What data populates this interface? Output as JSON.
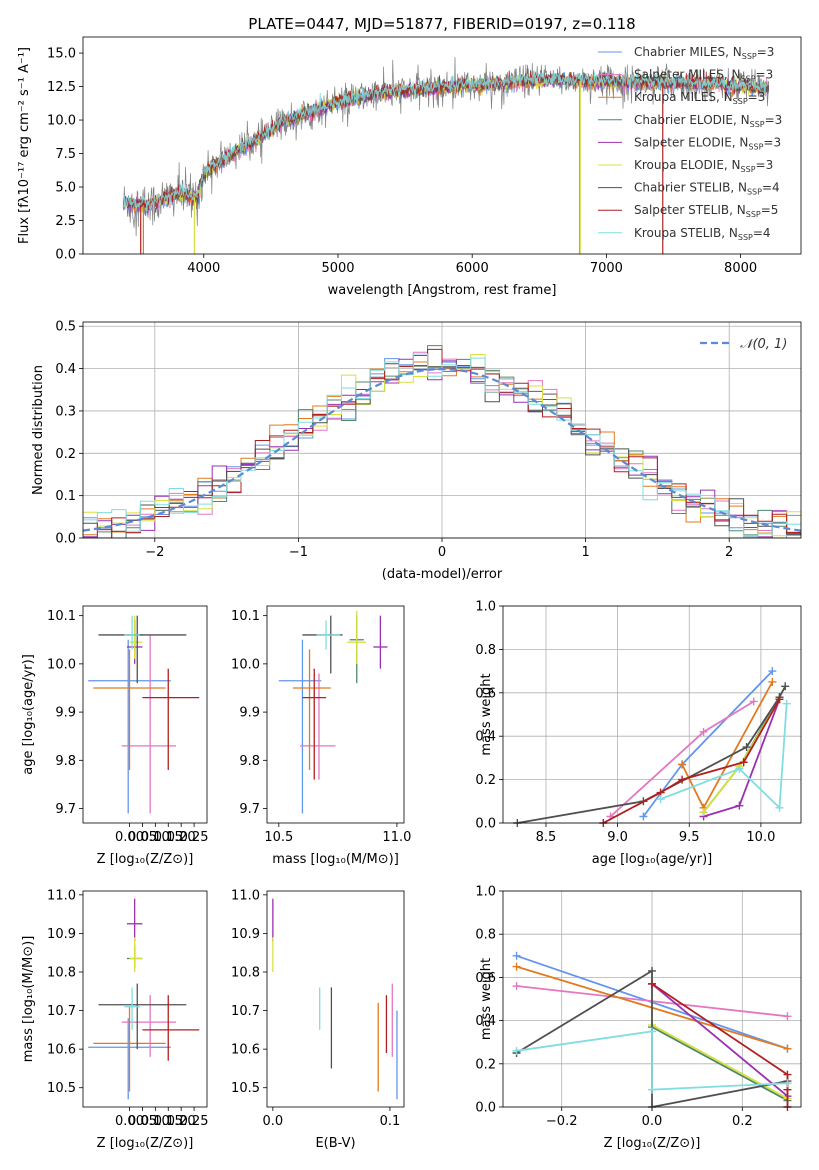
{
  "colors": {
    "Chabrier MILES": "#6495ed",
    "Salpeter MILES": "#e377c2",
    "Kroupa MILES": "#e07b20",
    "Chabrier ELODIE": "#4f8a6a",
    "Salpeter ELODIE": "#9b30b0",
    "Kroupa ELODIE": "#d8e040",
    "Chabrier STELIB": "#505050",
    "Salpeter STELIB": "#b02020",
    "Kroupa STELIB": "#80dde0"
  },
  "chart_data": [
    {
      "type": "line",
      "title": "PLATE=0447, MJD=51877, FIBERID=0197, z=0.118",
      "xlabel": "wavelength [Angstrom, rest frame]",
      "ylabel": "Flux [fλ10⁻¹⁷ erg cm⁻² s⁻¹ A⁻¹]",
      "xlim": [
        3100,
        8450
      ],
      "ylim": [
        0,
        16.2
      ],
      "xticks": [
        "4000",
        "5000",
        "6000",
        "7000",
        "8000"
      ],
      "yticks": [
        "0.0",
        "2.5",
        "5.0",
        "7.5",
        "10.0",
        "12.5",
        "15.0"
      ],
      "legend": "top-right",
      "series": [
        {
          "label": "Chabrier MILES, N",
          "sub": "SSP",
          "eq": "=3"
        },
        {
          "label": "Salpeter MILES, N",
          "sub": "SSP",
          "eq": "=3"
        },
        {
          "label": "Kroupa MILES, N",
          "sub": "SSP",
          "eq": "=3"
        },
        {
          "label": "Chabrier ELODIE, N",
          "sub": "SSP",
          "eq": "=3"
        },
        {
          "label": "Salpeter ELODIE, N",
          "sub": "SSP",
          "eq": "=3"
        },
        {
          "label": "Kroupa ELODIE, N",
          "sub": "SSP",
          "eq": "=3"
        },
        {
          "label": "Chabrier STELIB, N",
          "sub": "SSP",
          "eq": "=4"
        },
        {
          "label": "Salpeter STELIB, N",
          "sub": "SSP",
          "eq": "=5"
        },
        {
          "label": "Kroupa STELIB, N",
          "sub": "SSP",
          "eq": "=4"
        }
      ],
      "continuum": [
        [
          3400,
          3.8
        ],
        [
          3600,
          3.6
        ],
        [
          3800,
          4.5
        ],
        [
          3950,
          4.2
        ],
        [
          4000,
          6.0
        ],
        [
          4200,
          7.4
        ],
        [
          4400,
          8.6
        ],
        [
          4600,
          9.9
        ],
        [
          4800,
          10.6
        ],
        [
          5000,
          11.3
        ],
        [
          5200,
          11.8
        ],
        [
          5400,
          12.1
        ],
        [
          5600,
          12.3
        ],
        [
          5800,
          12.5
        ],
        [
          6000,
          12.6
        ],
        [
          6200,
          12.7
        ],
        [
          6400,
          12.9
        ],
        [
          6600,
          13.0
        ],
        [
          6800,
          12.9
        ],
        [
          7000,
          12.9
        ],
        [
          7200,
          12.8
        ],
        [
          7500,
          12.8
        ],
        [
          7800,
          12.7
        ],
        [
          8000,
          12.5
        ],
        [
          8200,
          12.4
        ]
      ]
    },
    {
      "type": "histogram",
      "xlabel": "(data-model)/error",
      "ylabel": "Normed distribution",
      "xlim": [
        -2.5,
        2.5
      ],
      "ylim": [
        0,
        0.51
      ],
      "xticks": [
        "−2",
        "−1",
        "0",
        "1",
        "2"
      ],
      "yticks": [
        "0.0",
        "0.1",
        "0.2",
        "0.3",
        "0.4",
        "0.5"
      ],
      "legend": "𝒩(0, 1)",
      "legend_position": "top-right",
      "bin_width": 0.1,
      "reference": "normal(0,1)"
    },
    {
      "type": "errorbar",
      "xlabel": "Z [log₁₀(Z/Z⊙)]",
      "ylabel": "age  [log₁₀(age/yr)]",
      "xlim": [
        -0.18,
        0.3
      ],
      "ylim": [
        9.67,
        10.12
      ],
      "xticks": [
        "0.00",
        "0.05",
        "0.10",
        "0.15",
        "0.20",
        "0.25"
      ],
      "yticks": [
        "9.7",
        "9.8",
        "9.9",
        "10.0",
        "10.1"
      ],
      "points": [
        {
          "k": "Chabrier MILES",
          "x": -0.005,
          "y": 9.965,
          "xe": [
            -0.16,
            0.16
          ],
          "ye": [
            9.69,
            10.05
          ]
        },
        {
          "k": "Salpeter MILES",
          "x": 0.08,
          "y": 9.83,
          "xe": [
            -0.03,
            0.18
          ],
          "ye": [
            9.69,
            10.06
          ]
        },
        {
          "k": "Kroupa MILES",
          "x": 0.0,
          "y": 9.95,
          "xe": [
            -0.14,
            0.14
          ],
          "ye": [
            9.78,
            10.03
          ]
        },
        {
          "k": "Chabrier ELODIE",
          "x": 0.02,
          "y": 10.06,
          "xe": [
            -0.01,
            0.05
          ],
          "ye": [
            10.02,
            10.09
          ]
        },
        {
          "k": "Salpeter ELODIE",
          "x": 0.02,
          "y": 10.035,
          "xe": [
            -0.01,
            0.05
          ],
          "ye": [
            10.0,
            10.09
          ]
        },
        {
          "k": "Kroupa ELODIE",
          "x": 0.02,
          "y": 10.045,
          "xe": [
            0.0,
            0.05
          ],
          "ye": [
            10.01,
            10.1
          ]
        },
        {
          "k": "Chabrier STELIB",
          "x": 0.03,
          "y": 10.06,
          "xe": [
            -0.12,
            0.22
          ],
          "ye": [
            9.96,
            10.1
          ]
        },
        {
          "k": "Salpeter STELIB",
          "x": 0.15,
          "y": 9.93,
          "xe": [
            0.05,
            0.27
          ],
          "ye": [
            9.78,
            9.99
          ]
        },
        {
          "k": "Kroupa STELIB",
          "x": 0.01,
          "y": 10.06,
          "xe": [
            -0.02,
            0.04
          ],
          "ye": [
            10.03,
            10.1
          ]
        }
      ]
    },
    {
      "type": "errorbar",
      "xlabel": "mass [log₁₀(M/M⊙)]",
      "xlim": [
        10.45,
        11.03
      ],
      "ylim": [
        9.67,
        10.12
      ],
      "xticks": [
        "10.5",
        "11.0"
      ],
      "yticks": [
        "9.7",
        "9.8",
        "9.9",
        "10.0",
        "10.1"
      ],
      "points": [
        {
          "k": "Chabrier MILES",
          "x": 10.6,
          "y": 9.965,
          "xe": [
            10.5,
            10.68
          ],
          "ye": [
            9.69,
            10.05
          ]
        },
        {
          "k": "Salpeter MILES",
          "x": 10.67,
          "y": 9.83,
          "xe": [
            10.59,
            10.74
          ],
          "ye": [
            9.76,
            9.98
          ]
        },
        {
          "k": "Kroupa MILES",
          "x": 10.63,
          "y": 9.95,
          "xe": [
            10.56,
            10.72
          ],
          "ye": [
            9.78,
            10.03
          ]
        },
        {
          "k": "Chabrier ELODIE",
          "x": 10.83,
          "y": 10.05,
          "xe": [
            10.8,
            10.86
          ],
          "ye": [
            9.96,
            10.1
          ]
        },
        {
          "k": "Salpeter ELODIE",
          "x": 10.93,
          "y": 10.035,
          "xe": [
            10.9,
            10.96
          ],
          "ye": [
            9.99,
            10.1
          ]
        },
        {
          "k": "Kroupa ELODIE",
          "x": 10.83,
          "y": 10.045,
          "xe": [
            10.79,
            10.87
          ],
          "ye": [
            10.0,
            10.11
          ]
        },
        {
          "k": "Chabrier STELIB",
          "x": 10.72,
          "y": 10.06,
          "xe": [
            10.6,
            10.77
          ],
          "ye": [
            9.98,
            10.1
          ]
        },
        {
          "k": "Salpeter STELIB",
          "x": 10.65,
          "y": 9.93,
          "xe": [
            10.6,
            10.7
          ],
          "ye": [
            9.76,
            9.99
          ]
        },
        {
          "k": "Kroupa STELIB",
          "x": 10.7,
          "y": 10.06,
          "xe": [
            10.66,
            10.76
          ],
          "ye": [
            10.03,
            10.09
          ]
        }
      ]
    },
    {
      "type": "line",
      "xlabel": "age  [log₁₀(age/yr)]",
      "ylabel": "mass weight",
      "xlim": [
        8.2,
        10.28
      ],
      "ylim": [
        0,
        1.0
      ],
      "xticks": [
        "8.5",
        "9.0",
        "9.5",
        "10.0"
      ],
      "yticks": [
        "0.0",
        "0.2",
        "0.4",
        "0.6",
        "0.8",
        "1.0"
      ],
      "series": [
        {
          "k": "Chabrier MILES",
          "x": [
            9.18,
            9.45,
            10.08
          ],
          "y": [
            0.03,
            0.27,
            0.7
          ]
        },
        {
          "k": "Salpeter MILES",
          "x": [
            8.95,
            9.6,
            9.95
          ],
          "y": [
            0.03,
            0.42,
            0.56
          ]
        },
        {
          "k": "Kroupa MILES",
          "x": [
            9.45,
            9.6,
            10.08
          ],
          "y": [
            0.27,
            0.07,
            0.65
          ]
        },
        {
          "k": "Chabrier ELODIE",
          "x": [
            9.6,
            9.85,
            10.13
          ],
          "y": [
            0.05,
            0.26,
            0.58
          ]
        },
        {
          "k": "Salpeter ELODIE",
          "x": [
            9.6,
            9.85,
            10.13
          ],
          "y": [
            0.03,
            0.08,
            0.57
          ]
        },
        {
          "k": "Kroupa ELODIE",
          "x": [
            9.6,
            9.85,
            10.13
          ],
          "y": [
            0.05,
            0.26,
            0.57
          ]
        },
        {
          "k": "Chabrier STELIB",
          "x": [
            8.3,
            9.18,
            9.9,
            10.13,
            10.17
          ],
          "y": [
            0.0,
            0.1,
            0.35,
            0.58,
            0.63
          ]
        },
        {
          "k": "Salpeter STELIB",
          "x": [
            8.9,
            9.3,
            9.45,
            9.88,
            10.13
          ],
          "y": [
            0.0,
            0.14,
            0.2,
            0.28,
            0.57
          ]
        },
        {
          "k": "Kroupa STELIB",
          "x": [
            9.3,
            9.85,
            10.13,
            10.18
          ],
          "y": [
            0.11,
            0.25,
            0.07,
            0.55
          ]
        }
      ]
    },
    {
      "type": "errorbar",
      "xlabel": "Z [log₁₀(Z/Z⊙)]",
      "ylabel": "mass [log₁₀(M/M⊙)]",
      "xlim": [
        -0.18,
        0.3
      ],
      "ylim": [
        10.45,
        11.01
      ],
      "xticks": [
        "0.00",
        "0.05",
        "0.10",
        "0.15",
        "0.20",
        "0.25"
      ],
      "yticks": [
        "10.5",
        "10.6",
        "10.7",
        "10.8",
        "10.9",
        "11.0"
      ],
      "points": [
        {
          "k": "Chabrier MILES",
          "x": -0.005,
          "y": 10.605,
          "xe": [
            -0.16,
            0.16
          ],
          "ye": [
            10.47,
            10.68
          ]
        },
        {
          "k": "Salpeter MILES",
          "x": 0.08,
          "y": 10.67,
          "xe": [
            -0.03,
            0.18
          ],
          "ye": [
            10.58,
            10.74
          ]
        },
        {
          "k": "Kroupa MILES",
          "x": 0.0,
          "y": 10.615,
          "xe": [
            -0.14,
            0.14
          ],
          "ye": [
            10.49,
            10.71
          ]
        },
        {
          "k": "Chabrier ELODIE",
          "x": 0.02,
          "y": 10.835,
          "xe": [
            -0.01,
            0.05
          ],
          "ye": [
            10.81,
            10.87
          ]
        },
        {
          "k": "Salpeter ELODIE",
          "x": 0.02,
          "y": 10.925,
          "xe": [
            -0.01,
            0.05
          ],
          "ye": [
            10.88,
            10.99
          ]
        },
        {
          "k": "Kroupa ELODIE",
          "x": 0.02,
          "y": 10.835,
          "xe": [
            0.0,
            0.05
          ],
          "ye": [
            10.8,
            10.89
          ]
        },
        {
          "k": "Chabrier STELIB",
          "x": 0.03,
          "y": 10.715,
          "xe": [
            -0.12,
            0.22
          ],
          "ye": [
            10.6,
            10.77
          ]
        },
        {
          "k": "Salpeter STELIB",
          "x": 0.15,
          "y": 10.65,
          "xe": [
            0.05,
            0.27
          ],
          "ye": [
            10.57,
            10.74
          ]
        },
        {
          "k": "Kroupa STELIB",
          "x": 0.01,
          "y": 10.71,
          "xe": [
            -0.02,
            0.04
          ],
          "ye": [
            10.65,
            10.76
          ]
        }
      ]
    },
    {
      "type": "errorbar",
      "xlabel": "E(B-V)",
      "xlim": [
        -0.005,
        0.112
      ],
      "ylim": [
        10.45,
        11.01
      ],
      "xticks": [
        "0.0",
        "0.1"
      ],
      "yticks": [
        "10.5",
        "10.6",
        "10.7",
        "10.8",
        "10.9",
        "11.0"
      ],
      "segments": [
        {
          "k": "Salpeter ELODIE",
          "x": 0.0,
          "y1": 10.88,
          "y2": 10.99
        },
        {
          "k": "Kroupa ELODIE",
          "x": 0.0,
          "y1": 10.8,
          "y2": 10.89
        },
        {
          "k": "Kroupa STELIB",
          "x": 0.04,
          "y1": 10.65,
          "y2": 10.76
        },
        {
          "k": "Chabrier STELIB",
          "x": 0.05,
          "y1": 10.55,
          "y2": 10.76
        },
        {
          "k": "Kroupa MILES",
          "x": 0.09,
          "y1": 10.49,
          "y2": 10.72
        },
        {
          "k": "Salpeter STELIB",
          "x": 0.097,
          "y1": 10.59,
          "y2": 10.74
        },
        {
          "k": "Salpeter MILES",
          "x": 0.102,
          "y1": 10.58,
          "y2": 10.77
        },
        {
          "k": "Chabrier MILES",
          "x": 0.106,
          "y1": 10.47,
          "y2": 10.7
        }
      ]
    },
    {
      "type": "line",
      "xlabel": "Z [log₁₀(Z/Z⊙)]",
      "ylabel": "mass weight",
      "xlim": [
        -0.33,
        0.33
      ],
      "ylim": [
        0,
        1.0
      ],
      "xticks": [
        "−0.2",
        "0.0",
        "0.2"
      ],
      "yticks": [
        "0.0",
        "0.2",
        "0.4",
        "0.6",
        "0.8",
        "1.0"
      ],
      "series": [
        {
          "k": "Chabrier MILES",
          "x": [
            -0.3,
            0.3
          ],
          "y": [
            0.7,
            0.27
          ]
        },
        {
          "k": "Salpeter MILES",
          "x": [
            -0.3,
            0.3
          ],
          "y": [
            0.56,
            0.42
          ]
        },
        {
          "k": "Kroupa MILES",
          "x": [
            -0.3,
            0.3
          ],
          "y": [
            0.65,
            0.27
          ]
        },
        {
          "k": "Chabrier ELODIE",
          "x": [
            0.0,
            0.3
          ],
          "y": [
            0.37,
            0.03
          ]
        },
        {
          "k": "Salpeter ELODIE",
          "x": [
            0.0,
            0.3
          ],
          "y": [
            0.57,
            0.05
          ]
        },
        {
          "k": "Kroupa ELODIE",
          "x": [
            0.0,
            0.3
          ],
          "y": [
            0.38,
            0.04
          ]
        },
        {
          "k": "Chabrier STELIB",
          "x": [
            -0.3,
            0.0,
            0.0,
            0.3,
            0.3
          ],
          "y": [
            0.25,
            0.63,
            0.0,
            0.12,
            0.11
          ]
        },
        {
          "k": "Salpeter STELIB",
          "x": [
            0.0,
            0.3,
            0.3,
            0.3
          ],
          "y": [
            0.57,
            0.15,
            0.08,
            0.0
          ]
        },
        {
          "k": "Kroupa STELIB",
          "x": [
            -0.3,
            0.0,
            0.0,
            0.3
          ],
          "y": [
            0.26,
            0.35,
            0.08,
            0.11
          ]
        }
      ]
    }
  ]
}
